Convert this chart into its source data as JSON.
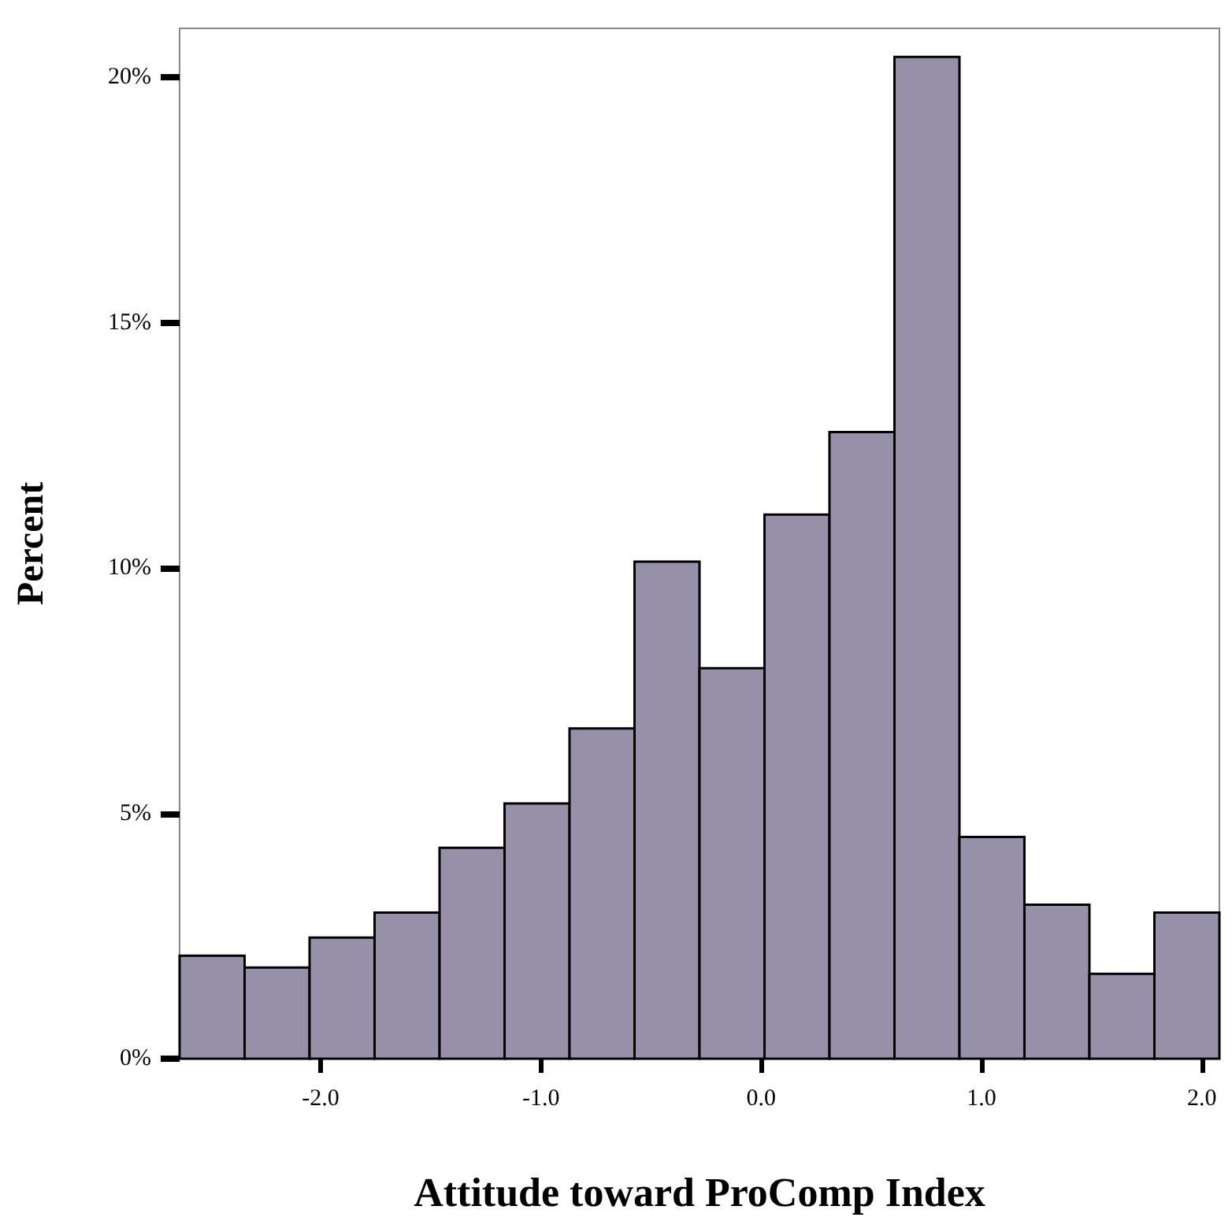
{
  "chart_data": {
    "type": "histogram",
    "xlabel": "Attitude toward ProComp Index",
    "ylabel": "Percent",
    "bins": [
      -2.64,
      -2.345,
      -2.05,
      -1.755,
      -1.46,
      -1.165,
      -0.87,
      -0.575,
      -0.28,
      0.015,
      0.31,
      0.605,
      0.9,
      1.195,
      1.49,
      1.785,
      2.08
    ],
    "values": [
      2.1,
      1.86,
      2.47,
      2.98,
      4.3,
      5.2,
      6.73,
      10.13,
      7.96,
      11.09,
      12.77,
      20.42,
      4.52,
      3.14,
      1.73,
      2.98
    ],
    "color": "#9691a8",
    "xlim": [
      -2.64,
      2.08
    ],
    "xticks": [
      {
        "value": -2,
        "label": "-2.0"
      },
      {
        "value": -1,
        "label": "-1.0"
      },
      {
        "value": 0,
        "label": "0.0"
      },
      {
        "value": 1,
        "label": "1.0"
      },
      {
        "value": 2,
        "label": "2.0"
      }
    ],
    "ylim": [
      0,
      21
    ],
    "yticks": [
      {
        "value": 0,
        "label": "0%"
      },
      {
        "value": 5,
        "label": "5%"
      },
      {
        "value": 10,
        "label": "10%"
      },
      {
        "value": 15,
        "label": "15%"
      },
      {
        "value": 20,
        "label": "20%"
      }
    ],
    "grid": false
  }
}
